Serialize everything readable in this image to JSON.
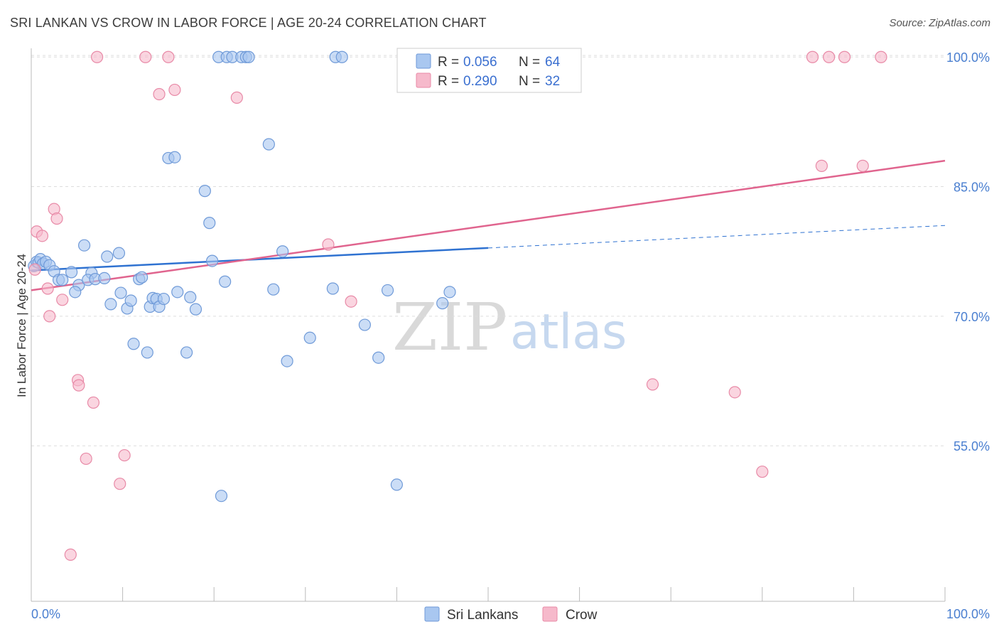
{
  "title": "SRI LANKAN VS CROW IN LABOR FORCE | AGE 20-24 CORRELATION CHART",
  "source": "Source: ZipAtlas.com",
  "watermark": {
    "zip": "ZIP",
    "atlas": "atlas"
  },
  "legend": {
    "rows": [
      {
        "r_label": "R = ",
        "r_value": "0.056",
        "n_label": "N = ",
        "n_value": "64"
      },
      {
        "r_label": "R = ",
        "r_value": "0.290",
        "n_label": "N = ",
        "n_value": "32"
      }
    ]
  },
  "colors": {
    "sri_fill": "#a9c7f0",
    "sri_stroke": "#6f9ad8",
    "sri_line": "#2f72d1",
    "crow_fill": "#f6b9cb",
    "crow_stroke": "#e88aa7",
    "crow_line": "#e0648e",
    "grid": "#dddddd",
    "axis": "#bbbbbb"
  },
  "chart_data": {
    "type": "scatter",
    "title": "SRI LANKAN VS CROW IN LABOR FORCE | AGE 20-24 CORRELATION CHART",
    "xlabel": "",
    "ylabel": "In Labor Force | Age 20-24",
    "xlim": [
      0,
      100
    ],
    "ylim": [
      37,
      101.5
    ],
    "x_tick_labels": [
      "0.0%",
      "100.0%"
    ],
    "y_ticks": [
      55,
      70,
      85,
      100
    ],
    "y_tick_labels": [
      "55.0%",
      "70.0%",
      "85.0%",
      "100.0%"
    ],
    "grid": true,
    "legend_position": "top-center",
    "series": [
      {
        "name": "Sri Lankans",
        "points": [
          [
            0.3,
            75.8
          ],
          [
            0.6,
            76.3
          ],
          [
            0.8,
            76.2
          ],
          [
            1.0,
            76.6
          ],
          [
            1.3,
            76.1
          ],
          [
            1.6,
            76.3
          ],
          [
            2.0,
            75.9
          ],
          [
            2.5,
            75.2
          ],
          [
            3.0,
            74.2
          ],
          [
            3.4,
            74.2
          ],
          [
            4.4,
            75.1
          ],
          [
            5.2,
            73.6
          ],
          [
            4.8,
            72.8
          ],
          [
            6.6,
            75.0
          ],
          [
            5.8,
            78.2
          ],
          [
            6.2,
            74.2
          ],
          [
            7.0,
            74.3
          ],
          [
            8.0,
            74.4
          ],
          [
            8.3,
            76.9
          ],
          [
            9.6,
            77.3
          ],
          [
            8.7,
            71.4
          ],
          [
            9.8,
            72.7
          ],
          [
            10.5,
            70.9
          ],
          [
            10.9,
            71.8
          ],
          [
            11.8,
            74.3
          ],
          [
            11.2,
            66.8
          ],
          [
            12.1,
            74.5
          ],
          [
            12.7,
            65.8
          ],
          [
            13.0,
            71.1
          ],
          [
            13.3,
            72.1
          ],
          [
            13.7,
            72.0
          ],
          [
            14.0,
            71.1
          ],
          [
            14.5,
            72.0
          ],
          [
            15.0,
            88.3
          ],
          [
            15.7,
            88.4
          ],
          [
            16.0,
            72.8
          ],
          [
            17.0,
            65.8
          ],
          [
            17.4,
            72.2
          ],
          [
            18.0,
            70.8
          ],
          [
            19.0,
            84.5
          ],
          [
            19.5,
            80.8
          ],
          [
            19.8,
            76.4
          ],
          [
            20.8,
            49.2
          ],
          [
            21.2,
            74.0
          ],
          [
            20.5,
            100
          ],
          [
            21.4,
            100
          ],
          [
            22.0,
            100
          ],
          [
            23.0,
            100
          ],
          [
            23.5,
            100
          ],
          [
            23.8,
            100
          ],
          [
            26.0,
            89.9
          ],
          [
            26.5,
            73.1
          ],
          [
            27.5,
            77.5
          ],
          [
            28.0,
            64.8
          ],
          [
            30.5,
            67.5
          ],
          [
            33.0,
            73.2
          ],
          [
            33.3,
            100
          ],
          [
            34.0,
            100
          ],
          [
            36.5,
            69.0
          ],
          [
            38.0,
            65.2
          ],
          [
            39.0,
            73.0
          ],
          [
            40.0,
            50.5
          ],
          [
            45.0,
            71.5
          ],
          [
            45.8,
            72.8
          ]
        ],
        "trend": {
          "x": [
            0,
            50
          ],
          "y": [
            75.3,
            77.9
          ],
          "dashed_extension": {
            "x": [
              50,
              100
            ],
            "y": [
              77.9,
              80.5
            ]
          }
        }
      },
      {
        "name": "Crow",
        "points": [
          [
            0.4,
            75.4
          ],
          [
            0.6,
            79.8
          ],
          [
            1.2,
            79.3
          ],
          [
            1.8,
            73.2
          ],
          [
            2.0,
            70.0
          ],
          [
            2.5,
            82.4
          ],
          [
            2.8,
            81.3
          ],
          [
            3.4,
            71.9
          ],
          [
            4.3,
            42.4
          ],
          [
            5.1,
            62.6
          ],
          [
            5.2,
            62.0
          ],
          [
            6.0,
            53.5
          ],
          [
            6.8,
            60.0
          ],
          [
            7.2,
            100
          ],
          [
            9.7,
            50.6
          ],
          [
            10.2,
            53.9
          ],
          [
            12.5,
            100
          ],
          [
            14.0,
            95.7
          ],
          [
            15.0,
            100
          ],
          [
            15.7,
            96.2
          ],
          [
            22.5,
            95.3
          ],
          [
            32.5,
            78.3
          ],
          [
            35.0,
            71.7
          ],
          [
            68.0,
            62.1
          ],
          [
            77.0,
            61.2
          ],
          [
            80.0,
            52.0
          ],
          [
            85.5,
            100
          ],
          [
            86.5,
            87.4
          ],
          [
            87.3,
            100
          ],
          [
            89.0,
            100
          ],
          [
            91.0,
            87.4
          ],
          [
            93.0,
            100
          ]
        ],
        "trend": {
          "x": [
            0,
            100
          ],
          "y": [
            73.0,
            88.0
          ]
        }
      }
    ]
  },
  "bottom_legend": [
    "Sri Lankans",
    "Crow"
  ]
}
